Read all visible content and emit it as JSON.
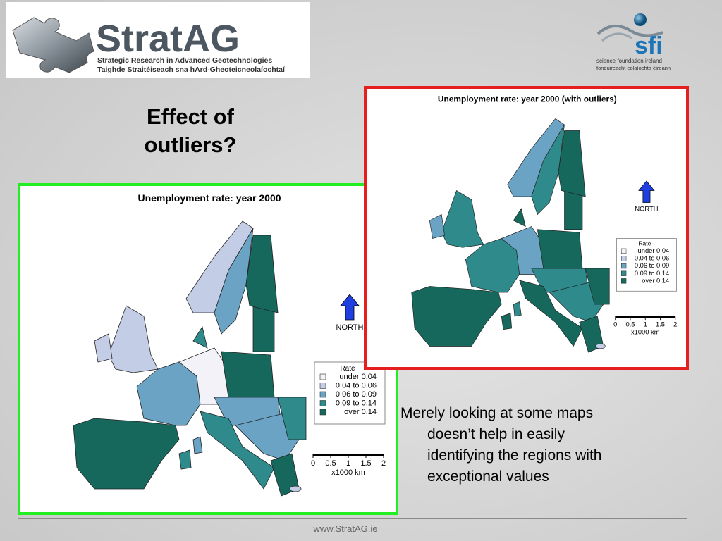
{
  "header": {
    "logo": {
      "name": "StratAG",
      "tagline": "Strategic Research in Advanced Geotechnologies",
      "tagline_irish": "Taighde Straitéiseach sna hArd-Gheoteicneolaíochtaí"
    },
    "partner": {
      "name": "sfi",
      "line1": "science foundation ireland",
      "line2": "fondúireacht eolaíochta éireann"
    }
  },
  "title": [
    "Effect of",
    "outliers?"
  ],
  "maps": [
    {
      "title": "Unemployment rate: year 2000",
      "north": "NORTH",
      "legend": {
        "title": "Rate",
        "items": [
          "under 0.04",
          "0.04 to 0.06",
          "0.06 to 0.09",
          "0.09 to 0.14",
          "over 0.14"
        ]
      },
      "scale": {
        "ticks": [
          "0",
          "0.5",
          "1",
          "1.5",
          "2"
        ],
        "unit": "x1000 km"
      }
    },
    {
      "title": "Unemployment rate: year 2000 (with outliers)",
      "north": "NORTH",
      "legend": {
        "title": "Rate",
        "items": [
          "under 0.04",
          "0.04 to 0.06",
          "0.06 to 0.09",
          "0.09 to 0.14",
          "over 0.14"
        ]
      },
      "scale": {
        "ticks": [
          "0",
          "0.5",
          "1",
          "1.5",
          "2"
        ],
        "unit": "x1000 km"
      }
    }
  ],
  "body": [
    "Merely looking at some maps",
    "doesn’t help in easily",
    "identifying the regions with",
    "exceptional values"
  ],
  "footer": "www.StratAG.ie"
}
